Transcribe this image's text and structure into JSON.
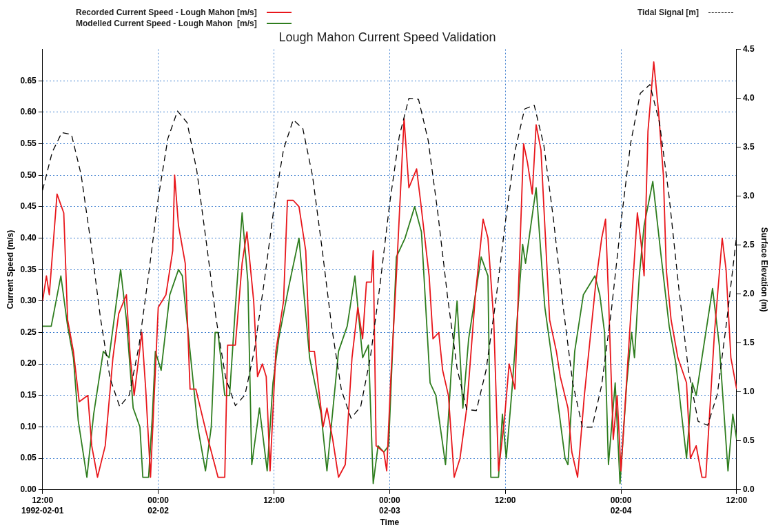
{
  "chart_data": {
    "type": "line",
    "title": "Lough Mahon Current Speed Validation",
    "xlabel": "Time",
    "ylabel": "Current Speed (m/s)",
    "y2label": "Surface Elevation (m)",
    "x": [
      "1992-02-01T12:00",
      "1992-02-01T13:00",
      "1992-02-01T14:00",
      "1992-02-01T15:00",
      "1992-02-01T16:00",
      "1992-02-01T17:00",
      "1992-02-01T18:00",
      "1992-02-01T19:00",
      "1992-02-01T20:00",
      "1992-02-01T21:00",
      "1992-02-01T22:00",
      "1992-02-01T23:00",
      "1992-02-02T00:00",
      "1992-02-02T01:00",
      "1992-02-02T02:00",
      "1992-02-02T03:00",
      "1992-02-02T04:00",
      "1992-02-02T05:00",
      "1992-02-02T06:00",
      "1992-02-02T07:00",
      "1992-02-02T08:00",
      "1992-02-02T09:00",
      "1992-02-02T10:00",
      "1992-02-02T11:00",
      "1992-02-02T12:00",
      "1992-02-02T13:00",
      "1992-02-02T14:00",
      "1992-02-02T15:00",
      "1992-02-02T16:00",
      "1992-02-02T17:00",
      "1992-02-02T18:00",
      "1992-02-02T19:00",
      "1992-02-02T20:00",
      "1992-02-02T21:00",
      "1992-02-02T22:00",
      "1992-02-02T23:00",
      "1992-02-03T00:00",
      "1992-02-03T01:00",
      "1992-02-03T02:00",
      "1992-02-03T03:00",
      "1992-02-03T04:00",
      "1992-02-03T05:00",
      "1992-02-03T06:00",
      "1992-02-03T07:00",
      "1992-02-03T08:00",
      "1992-02-03T09:00",
      "1992-02-03T10:00",
      "1992-02-03T11:00",
      "1992-02-03T12:00",
      "1992-02-03T13:00",
      "1992-02-03T14:00",
      "1992-02-03T15:00",
      "1992-02-03T16:00",
      "1992-02-03T17:00",
      "1992-02-03T18:00",
      "1992-02-03T19:00",
      "1992-02-03T20:00",
      "1992-02-03T21:00",
      "1992-02-03T22:00",
      "1992-02-03T23:00",
      "1992-02-04T00:00",
      "1992-02-04T01:00",
      "1992-02-04T02:00",
      "1992-02-04T03:00",
      "1992-02-04T04:00",
      "1992-02-04T05:00",
      "1992-02-04T06:00",
      "1992-02-04T07:00",
      "1992-02-04T08:00",
      "1992-02-04T09:00",
      "1992-02-04T10:00",
      "1992-02-04T11:00",
      "1992-02-04T12:00"
    ],
    "series": [
      {
        "name": "Recorded Current Speed - Lough Mahon [m/s]",
        "color": "#e8161b",
        "x": [
          "1992-02-01T12:00",
          "1992-02-01T12:24",
          "1992-02-01T12:42",
          "1992-02-01T13:30",
          "1992-02-01T14:12",
          "1992-02-01T14:36",
          "1992-02-01T15:12",
          "1992-02-01T15:48",
          "1992-02-01T16:42",
          "1992-02-01T17:06",
          "1992-02-01T17:42",
          "1992-02-01T18:30",
          "1992-02-01T19:18",
          "1992-02-01T19:54",
          "1992-02-01T20:42",
          "1992-02-01T21:06",
          "1992-02-01T21:30",
          "1992-02-01T22:18",
          "1992-02-01T22:42",
          "1992-02-01T23:12",
          "1992-02-02T00:00",
          "1992-02-02T00:48",
          "1992-02-02T01:30",
          "1992-02-02T01:42",
          "1992-02-02T02:06",
          "1992-02-02T02:48",
          "1992-02-02T03:18",
          "1992-02-02T03:54",
          "1992-02-02T05:00",
          "1992-02-02T06:12",
          "1992-02-02T06:54",
          "1992-02-02T07:12",
          "1992-02-02T08:00",
          "1992-02-02T08:42",
          "1992-02-02T09:12",
          "1992-02-02T09:54",
          "1992-02-02T10:18",
          "1992-02-02T10:48",
          "1992-02-02T11:12",
          "1992-02-02T11:36",
          "1992-02-02T12:12",
          "1992-02-02T13:00",
          "1992-02-02T13:24",
          "1992-02-02T14:00",
          "1992-02-02T14:36",
          "1992-02-02T15:18",
          "1992-02-02T15:42",
          "1992-02-02T16:12",
          "1992-02-02T17:06",
          "1992-02-02T17:30",
          "1992-02-02T18:06",
          "1992-02-02T18:42",
          "1992-02-02T19:24",
          "1992-02-02T20:06",
          "1992-02-02T20:42",
          "1992-02-02T21:12",
          "1992-02-02T21:36",
          "1992-02-02T22:06",
          "1992-02-02T22:18",
          "1992-02-02T22:36",
          "1992-02-02T23:24",
          "1992-02-02T23:42",
          "1992-02-03T00:06",
          "1992-02-03T00:42",
          "1992-02-03T01:30",
          "1992-02-03T02:00",
          "1992-02-03T02:48",
          "1992-02-03T03:12",
          "1992-02-03T04:06",
          "1992-02-03T04:30",
          "1992-02-03T05:06",
          "1992-02-03T05:30",
          "1992-02-03T06:06",
          "1992-02-03T06:42",
          "1992-02-03T07:18",
          "1992-02-03T08:00",
          "1992-02-03T08:54",
          "1992-02-03T09:42",
          "1992-02-03T10:12",
          "1992-02-03T10:48",
          "1992-02-03T11:18",
          "1992-02-03T11:54",
          "1992-02-03T12:24",
          "1992-02-03T13:00",
          "1992-02-03T13:54",
          "1992-02-03T14:18",
          "1992-02-03T14:48",
          "1992-02-03T15:12",
          "1992-02-03T15:42",
          "1992-02-03T16:36",
          "1992-02-03T17:18",
          "1992-02-03T17:42",
          "1992-02-03T18:30",
          "1992-02-03T18:54",
          "1992-02-03T19:30",
          "1992-02-03T20:12",
          "1992-02-03T21:24",
          "1992-02-03T22:00",
          "1992-02-03T22:24",
          "1992-02-03T22:42",
          "1992-02-03T23:12",
          "1992-02-03T23:36",
          "1992-02-04T00:00",
          "1992-02-04T00:54",
          "1992-02-04T01:42",
          "1992-02-04T02:06",
          "1992-02-04T02:24",
          "1992-02-04T02:48",
          "1992-02-04T03:24",
          "1992-02-04T03:54",
          "1992-02-04T04:24",
          "1992-02-04T04:42",
          "1992-02-04T05:12",
          "1992-02-04T05:54",
          "1992-02-04T06:48",
          "1992-02-04T07:12",
          "1992-02-04T07:48",
          "1992-02-04T08:24",
          "1992-02-04T08:48",
          "1992-02-04T09:42",
          "1992-02-04T10:30",
          "1992-02-04T10:54",
          "1992-02-04T11:24",
          "1992-02-04T12:00"
        ],
        "values": [
          0.3,
          0.34,
          0.31,
          0.47,
          0.44,
          0.27,
          0.22,
          0.14,
          0.15,
          0.07,
          0.02,
          0.07,
          0.21,
          0.28,
          0.31,
          0.21,
          0.15,
          0.25,
          0.16,
          0.02,
          0.29,
          0.31,
          0.38,
          0.5,
          0.42,
          0.36,
          0.16,
          0.16,
          0.09,
          0.02,
          0.02,
          0.23,
          0.23,
          0.36,
          0.41,
          0.3,
          0.18,
          0.2,
          0.18,
          0.03,
          0.22,
          0.3,
          0.46,
          0.46,
          0.45,
          0.38,
          0.22,
          0.22,
          0.1,
          0.13,
          0.08,
          0.02,
          0.04,
          0.21,
          0.29,
          0.24,
          0.33,
          0.33,
          0.38,
          0.07,
          0.06,
          0.03,
          0.17,
          0.34,
          0.59,
          0.48,
          0.51,
          0.46,
          0.34,
          0.24,
          0.25,
          0.19,
          0.15,
          0.02,
          0.05,
          0.13,
          0.31,
          0.43,
          0.4,
          0.27,
          0.03,
          0.11,
          0.2,
          0.16,
          0.55,
          0.52,
          0.47,
          0.58,
          0.54,
          0.27,
          0.22,
          0.18,
          0.13,
          0.06,
          0.02,
          0.15,
          0.33,
          0.4,
          0.43,
          0.31,
          0.08,
          0.15,
          0.03,
          0.25,
          0.44,
          0.39,
          0.34,
          0.57,
          0.68,
          0.6,
          0.5,
          0.35,
          0.27,
          0.21,
          0.17,
          0.05,
          0.07,
          0.02,
          0.02,
          0.25,
          0.4,
          0.35,
          0.21,
          0.16
        ]
      },
      {
        "name": "Modelled Current Speed - Lough Mahon  [m/s]",
        "color": "#2e7d1e",
        "x": [
          "1992-02-01T12:00",
          "1992-02-01T12:54",
          "1992-02-01T13:54",
          "1992-02-01T14:36",
          "1992-02-01T15:12",
          "1992-02-01T15:42",
          "1992-02-01T16:36",
          "1992-02-01T17:18",
          "1992-02-01T18:18",
          "1992-02-01T18:54",
          "1992-02-01T20:06",
          "1992-02-01T20:42",
          "1992-02-01T21:24",
          "1992-02-01T22:06",
          "1992-02-01T22:24",
          "1992-02-01T23:00",
          "1992-02-01T23:24",
          "1992-02-01T23:42",
          "1992-02-02T00:18",
          "1992-02-02T01:12",
          "1992-02-02T02:06",
          "1992-02-02T02:30",
          "1992-02-02T03:18",
          "1992-02-02T04:06",
          "1992-02-02T04:54",
          "1992-02-02T05:30",
          "1992-02-02T05:54",
          "1992-02-02T06:12",
          "1992-02-02T06:54",
          "1992-02-02T07:24",
          "1992-02-02T08:00",
          "1992-02-02T08:42",
          "1992-02-02T09:18",
          "1992-02-02T09:42",
          "1992-02-02T10:30",
          "1992-02-02T11:18",
          "1992-02-02T11:54",
          "1992-02-02T12:30",
          "1992-02-02T13:30",
          "1992-02-02T14:36",
          "1992-02-02T15:42",
          "1992-02-02T16:54",
          "1992-02-02T17:30",
          "1992-02-02T18:42",
          "1992-02-02T19:36",
          "1992-02-02T20:24",
          "1992-02-02T21:12",
          "1992-02-02T21:48",
          "1992-02-02T22:18",
          "1992-02-02T22:48",
          "1992-02-02T23:24",
          "1992-02-02T23:54",
          "1992-02-03T00:42",
          "1992-02-03T01:00",
          "1992-02-03T01:36",
          "1992-02-03T02:36",
          "1992-02-03T03:18",
          "1992-02-03T04:12",
          "1992-02-03T04:48",
          "1992-02-03T05:48",
          "1992-02-03T06:24",
          "1992-02-03T07:00",
          "1992-02-03T07:36",
          "1992-02-03T08:12",
          "1992-02-03T08:54",
          "1992-02-03T09:30",
          "1992-02-03T10:12",
          "1992-02-03T10:30",
          "1992-02-03T11:18",
          "1992-02-03T11:42",
          "1992-02-03T12:06",
          "1992-02-03T12:42",
          "1992-02-03T13:48",
          "1992-02-03T14:06",
          "1992-02-03T15:12",
          "1992-02-03T16:06",
          "1992-02-03T17:06",
          "1992-02-03T18:12",
          "1992-02-03T18:30",
          "1992-02-03T19:12",
          "1992-02-03T20:06",
          "1992-02-03T21:18",
          "1992-02-03T21:48",
          "1992-02-03T22:18",
          "1992-02-03T22:42",
          "1992-02-03T23:24",
          "1992-02-03T23:54",
          "1992-02-04T00:36",
          "1992-02-04T01:06",
          "1992-02-04T01:24",
          "1992-02-04T01:54",
          "1992-02-04T02:24",
          "1992-02-04T03:18",
          "1992-02-04T04:06",
          "1992-02-04T05:00",
          "1992-02-04T05:42",
          "1992-02-04T06:48",
          "1992-02-04T07:24",
          "1992-02-04T07:48",
          "1992-02-04T08:12",
          "1992-02-04T09:30",
          "1992-02-04T10:12",
          "1992-02-04T11:06",
          "1992-02-04T11:36",
          "1992-02-04T12:00"
        ],
        "values": [
          0.26,
          0.26,
          0.34,
          0.26,
          0.21,
          0.11,
          0.02,
          0.12,
          0.22,
          0.21,
          0.35,
          0.27,
          0.13,
          0.1,
          0.02,
          0.02,
          0.12,
          0.22,
          0.19,
          0.31,
          0.35,
          0.34,
          0.22,
          0.1,
          0.03,
          0.1,
          0.25,
          0.25,
          0.15,
          0.15,
          0.29,
          0.44,
          0.33,
          0.04,
          0.13,
          0.03,
          0.17,
          0.24,
          0.32,
          0.4,
          0.21,
          0.12,
          0.03,
          0.22,
          0.26,
          0.34,
          0.21,
          0.23,
          0.01,
          0.07,
          0.06,
          0.07,
          0.37,
          0.38,
          0.4,
          0.45,
          0.41,
          0.17,
          0.15,
          0.04,
          0.19,
          0.3,
          0.13,
          0.24,
          0.31,
          0.37,
          0.34,
          0.02,
          0.02,
          0.12,
          0.05,
          0.16,
          0.39,
          0.36,
          0.48,
          0.29,
          0.18,
          0.05,
          0.04,
          0.22,
          0.31,
          0.34,
          0.31,
          0.25,
          0.04,
          0.17,
          0.01,
          0.17,
          0.25,
          0.21,
          0.34,
          0.42,
          0.49,
          0.38,
          0.26,
          0.2,
          0.05,
          0.17,
          0.15,
          0.19,
          0.32,
          0.23,
          0.03,
          0.12,
          0.08
        ]
      },
      {
        "name": "Tidal Signal [m]",
        "color": "#000000",
        "axis": "y2",
        "line_style": "dashed",
        "values": [
          3.06,
          3.45,
          3.65,
          3.63,
          3.22,
          2.53,
          1.76,
          1.14,
          0.85,
          0.97,
          1.47,
          2.2,
          2.98,
          3.59,
          3.87,
          3.75,
          3.26,
          2.52,
          1.75,
          1.14,
          0.86,
          0.97,
          1.44,
          2.13,
          2.88,
          3.48,
          3.78,
          3.69,
          3.21,
          2.46,
          1.66,
          1.02,
          0.73,
          0.85,
          1.35,
          2.09,
          2.92,
          3.61,
          4.0,
          3.99,
          3.57,
          2.83,
          1.98,
          1.24,
          0.82,
          0.81,
          1.22,
          1.92,
          2.73,
          3.46,
          3.89,
          3.93,
          3.52,
          2.76,
          1.87,
          1.09,
          0.64,
          0.64,
          1.07,
          1.83,
          2.73,
          3.54,
          4.05,
          4.14,
          3.75,
          2.99,
          2.06,
          1.22,
          0.7,
          0.66,
          0.98,
          1.75,
          2.6
        ]
      }
    ],
    "xlim": [
      "1992-02-01T12:00",
      "1992-02-04T12:00"
    ],
    "xticks": [
      {
        "value": "1992-02-01T12:00",
        "label": "12:00\n1992-02-01"
      },
      {
        "value": "1992-02-02T00:00",
        "label": "00:00\n02-02"
      },
      {
        "value": "1992-02-02T12:00",
        "label": "12:00"
      },
      {
        "value": "1992-02-03T00:00",
        "label": "00:00\n02-03"
      },
      {
        "value": "1992-02-03T12:00",
        "label": "12:00"
      },
      {
        "value": "1992-02-04T00:00",
        "label": "00:00\n02-04"
      },
      {
        "value": "1992-02-04T12:00",
        "label": "12:00"
      }
    ],
    "ylim": [
      0,
      0.7
    ],
    "yticks": [
      {
        "value": 0,
        "label": "0.00"
      },
      0.05,
      {
        "value": 0.1,
        "label": "0.10"
      },
      0.15,
      {
        "value": 0.2,
        "label": "0.20"
      },
      0.25,
      {
        "value": 0.3,
        "label": "0.30"
      },
      0.35,
      {
        "value": 0.4,
        "label": "0.40"
      },
      0.45,
      {
        "value": 0.5,
        "label": "0.50"
      },
      0.55,
      {
        "value": 0.6,
        "label": "0.60"
      },
      0.65
    ],
    "y2lim": [
      0,
      4.5
    ],
    "y2ticks": [
      {
        "value": 0,
        "label": "0.0"
      },
      {
        "value": 0.5,
        "label": "0.5"
      },
      {
        "value": 1,
        "label": "1.0"
      },
      {
        "value": 1.5,
        "label": "1.5"
      },
      {
        "value": 2,
        "label": "2.0"
      },
      {
        "value": 2.5,
        "label": "2.5"
      },
      {
        "value": 3,
        "label": "3.0"
      },
      {
        "value": 3.5,
        "label": "3.5"
      },
      {
        "value": 4,
        "label": "4.0"
      },
      {
        "value": 4.5,
        "label": "4.5"
      }
    ],
    "grid": true,
    "legend": "top",
    "marker": "none",
    "line_style": "solid"
  }
}
